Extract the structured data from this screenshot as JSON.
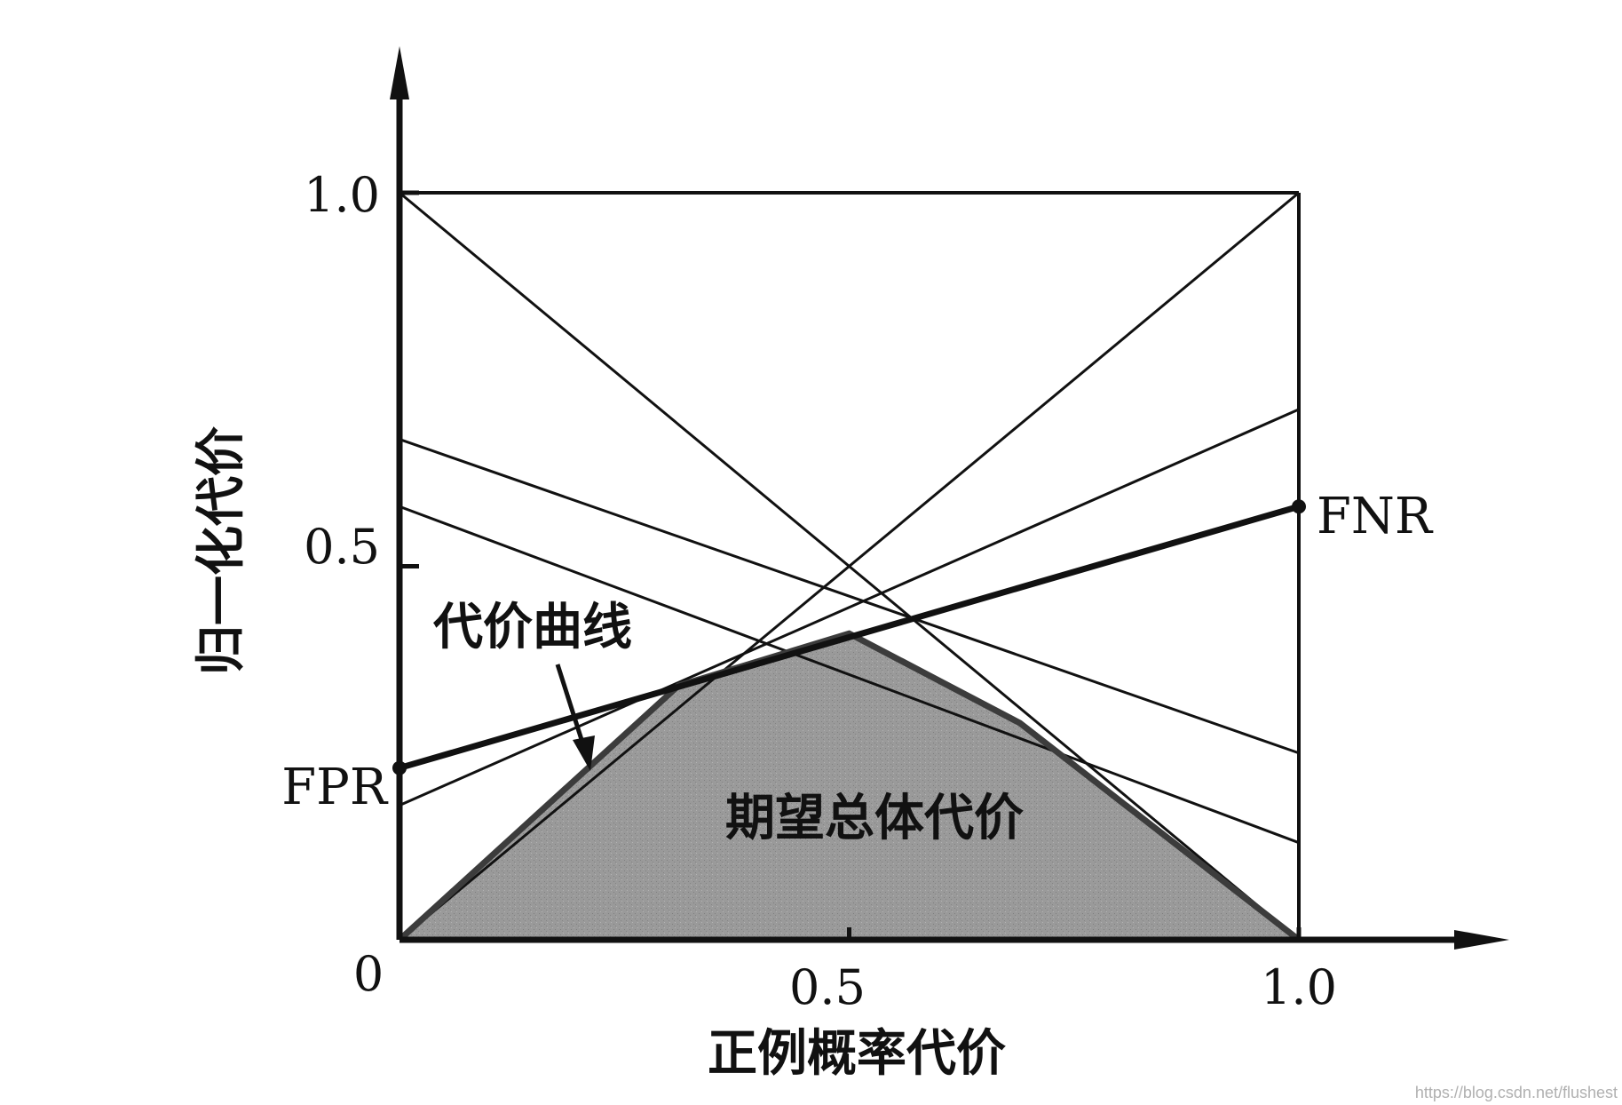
{
  "chart_data": {
    "type": "line",
    "xlabel": "正例概率代价",
    "ylabel": "归一化代价",
    "xlim": [
      0,
      1.2
    ],
    "ylim": [
      0,
      1.2
    ],
    "x_ticks": [
      {
        "value": 0,
        "label": "0"
      },
      {
        "value": 0.5,
        "label": "0.5"
      },
      {
        "value": 1.0,
        "label": "1.0"
      }
    ],
    "y_ticks": [
      {
        "value": 0.5,
        "label": "0.5"
      },
      {
        "value": 1.0,
        "label": "1.0"
      }
    ],
    "cost_lines": [
      {
        "x": [
          0,
          1
        ],
        "y": [
          1.0,
          0.0
        ]
      },
      {
        "x": [
          0,
          1
        ],
        "y": [
          0.0,
          1.0
        ]
      },
      {
        "x": [
          0,
          1
        ],
        "y": [
          0.67,
          0.25
        ]
      },
      {
        "x": [
          0,
          1
        ],
        "y": [
          0.58,
          0.13
        ]
      },
      {
        "x": [
          0,
          1
        ],
        "y": [
          0.18,
          0.71
        ]
      }
    ],
    "highlighted_line": {
      "x": [
        0,
        1
      ],
      "y": [
        0.23,
        0.58
      ],
      "start_label": "FPR",
      "end_label": "FNR"
    },
    "expected_cost_curve": {
      "x": [
        0,
        0.31,
        0.5,
        0.69,
        1.0
      ],
      "y": [
        0,
        0.34,
        0.41,
        0.29,
        0
      ]
    },
    "annotations": {
      "curve_label": "代价曲线",
      "area_label": "期望总体代价",
      "fpr_label": "FPR",
      "fnr_label": "FNR"
    },
    "watermark": "https://blog.csdn.net/flushest"
  }
}
